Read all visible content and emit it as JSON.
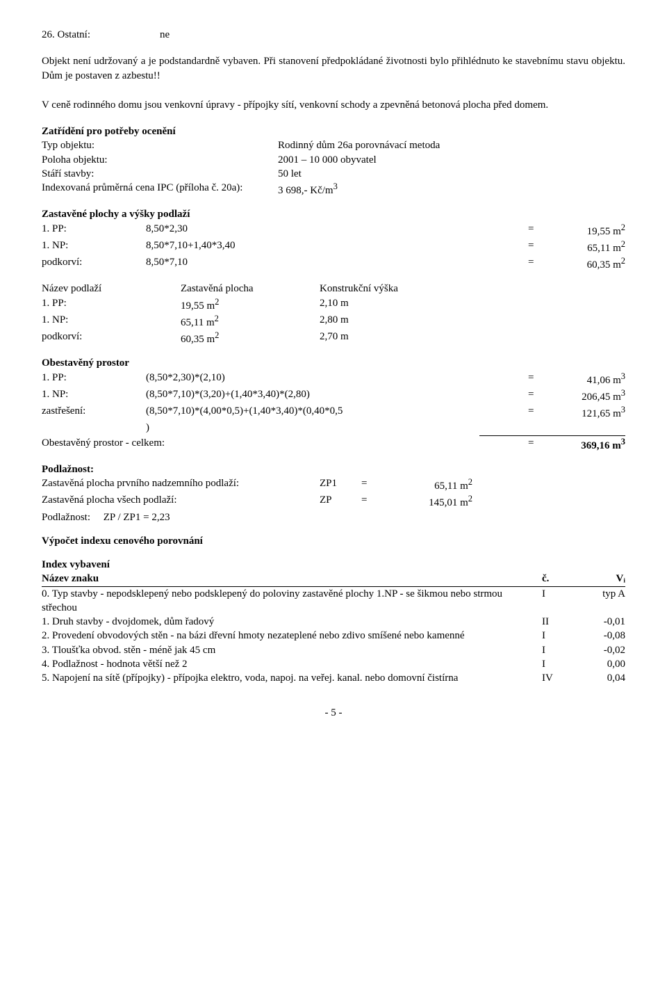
{
  "line26": {
    "label": "26. Ostatní:",
    "value": "ne"
  },
  "para1": "Objekt není udržovaný a je podstandardně vybaven. Při stanovení předpokládané životnosti bylo přihlédnuto ke stavebnímu stavu objektu. Dům je postaven z azbestu!!",
  "para2": "V ceně rodinného domu jsou venkovní úpravy - přípojky sítí, venkovní schody a zpevněná betonová plocha před domem.",
  "h_zatrideni": "Zatřídění pro potřeby ocenění",
  "zat": {
    "r1l": "Typ objektu:",
    "r1r": "Rodinný dům 26a porovnávací metoda",
    "r2l": "Poloha objektu:",
    "r2r": "2001 – 10 000 obyvatel",
    "r3l": "Stáří stavby:",
    "r3r": "50 let",
    "r4l": "Indexovaná průměrná cena IPC (příloha č. 20a):",
    "r4r": "3 698,- Kč/m",
    "r4sup": "3"
  },
  "h_zastavene": "Zastavěné plochy a výšky podlaží",
  "zp_rows": [
    {
      "c1": "1. PP:",
      "c2": "8,50*2,30",
      "c3": "=",
      "c4": "19,55 m",
      "sup": "2"
    },
    {
      "c1": "1. NP:",
      "c2": "8,50*7,10+1,40*3,40",
      "c3": "=",
      "c4": "65,11 m",
      "sup": "2"
    },
    {
      "c1": "podkorví:",
      "c2": "8,50*7,10",
      "c3": "=",
      "c4": "60,35 m",
      "sup": "2"
    }
  ],
  "kv_header": {
    "h1": "Název podlaží",
    "h2": "Zastavěná plocha",
    "h3": "Konstrukční výška"
  },
  "kv_rows": [
    {
      "c1": "1. PP:",
      "c2": "19,55 m",
      "c2sup": "2",
      "c3": "2,10 m"
    },
    {
      "c1": "1. NP:",
      "c2": "65,11 m",
      "c2sup": "2",
      "c3": "2,80 m"
    },
    {
      "c1": "podkorví:",
      "c2": "60,35 m",
      "c2sup": "2",
      "c3": "2,70 m"
    }
  ],
  "h_obest": "Obestavěný prostor",
  "op_rows": [
    {
      "c1": "1. PP:",
      "c2": "(8,50*2,30)*(2,10)",
      "c3": "=",
      "c4": "41,06 m",
      "sup": "3"
    },
    {
      "c1": "1. NP:",
      "c2": "(8,50*7,10)*(3,20)+(1,40*3,40)*(2,80)",
      "c3": "=",
      "c4": "206,45 m",
      "sup": "3"
    }
  ],
  "op_zast": {
    "c1": "zastřešení:",
    "c2a": "(8,50*7,10)*(4,00*0,5)+(1,40*3,40)*(0,40*0,5",
    "c2b": ")",
    "c3": "=",
    "c4": "121,65 m",
    "sup": "3"
  },
  "op_total": {
    "label": "Obestavěný prostor - celkem:",
    "eq": "=",
    "val": "369,16 m",
    "sup": "3"
  },
  "h_podlaznost": "Podlažnost:",
  "pod": [
    {
      "z1": "Zastavěná plocha prvního nadzemního podlaží:",
      "z2": "ZP1",
      "z3": "=",
      "z4": "65,11 m",
      "sup": "2"
    },
    {
      "z1": "Zastavěná plocha všech podlaží:",
      "z2": "ZP",
      "z3": "=",
      "z4": "145,01 m",
      "sup": "2"
    }
  ],
  "pod_ratio": "Podlažnost:     ZP / ZP1 = 2,23",
  "h_vypocet": "Výpočet indexu cenového porovnání",
  "h_indexvyb": "Index vybavení",
  "idx_header": {
    "i1": "Název znaku",
    "i2": "č.",
    "i3": "Vᵢ"
  },
  "idx_rows": [
    {
      "i1": "0. Typ stavby - nepodsklepený nebo podsklepený do poloviny zastavěné plochy 1.NP - se šikmou nebo strmou střechou",
      "i2": "I",
      "i3": "typ A"
    },
    {
      "i1": "1. Druh stavby - dvojdomek, dům řadový",
      "i2": "II",
      "i3": "-0,01"
    },
    {
      "i1": "2. Provedení obvodových stěn - na bázi dřevní hmoty nezateplené nebo zdivo smíšené nebo kamenné",
      "i2": "I",
      "i3": "-0,08"
    },
    {
      "i1": "3. Tloušťka obvod. stěn - méně jak 45 cm",
      "i2": "I",
      "i3": "-0,02"
    },
    {
      "i1": "4. Podlažnost - hodnota větší než 2",
      "i2": "I",
      "i3": "0,00"
    },
    {
      "i1": "5. Napojení na sítě (přípojky) - přípojka elektro, voda, napoj. na veřej. kanal. nebo domovní čistírna",
      "i2": "IV",
      "i3": "0,04"
    }
  ],
  "pagenum": "- 5 -"
}
